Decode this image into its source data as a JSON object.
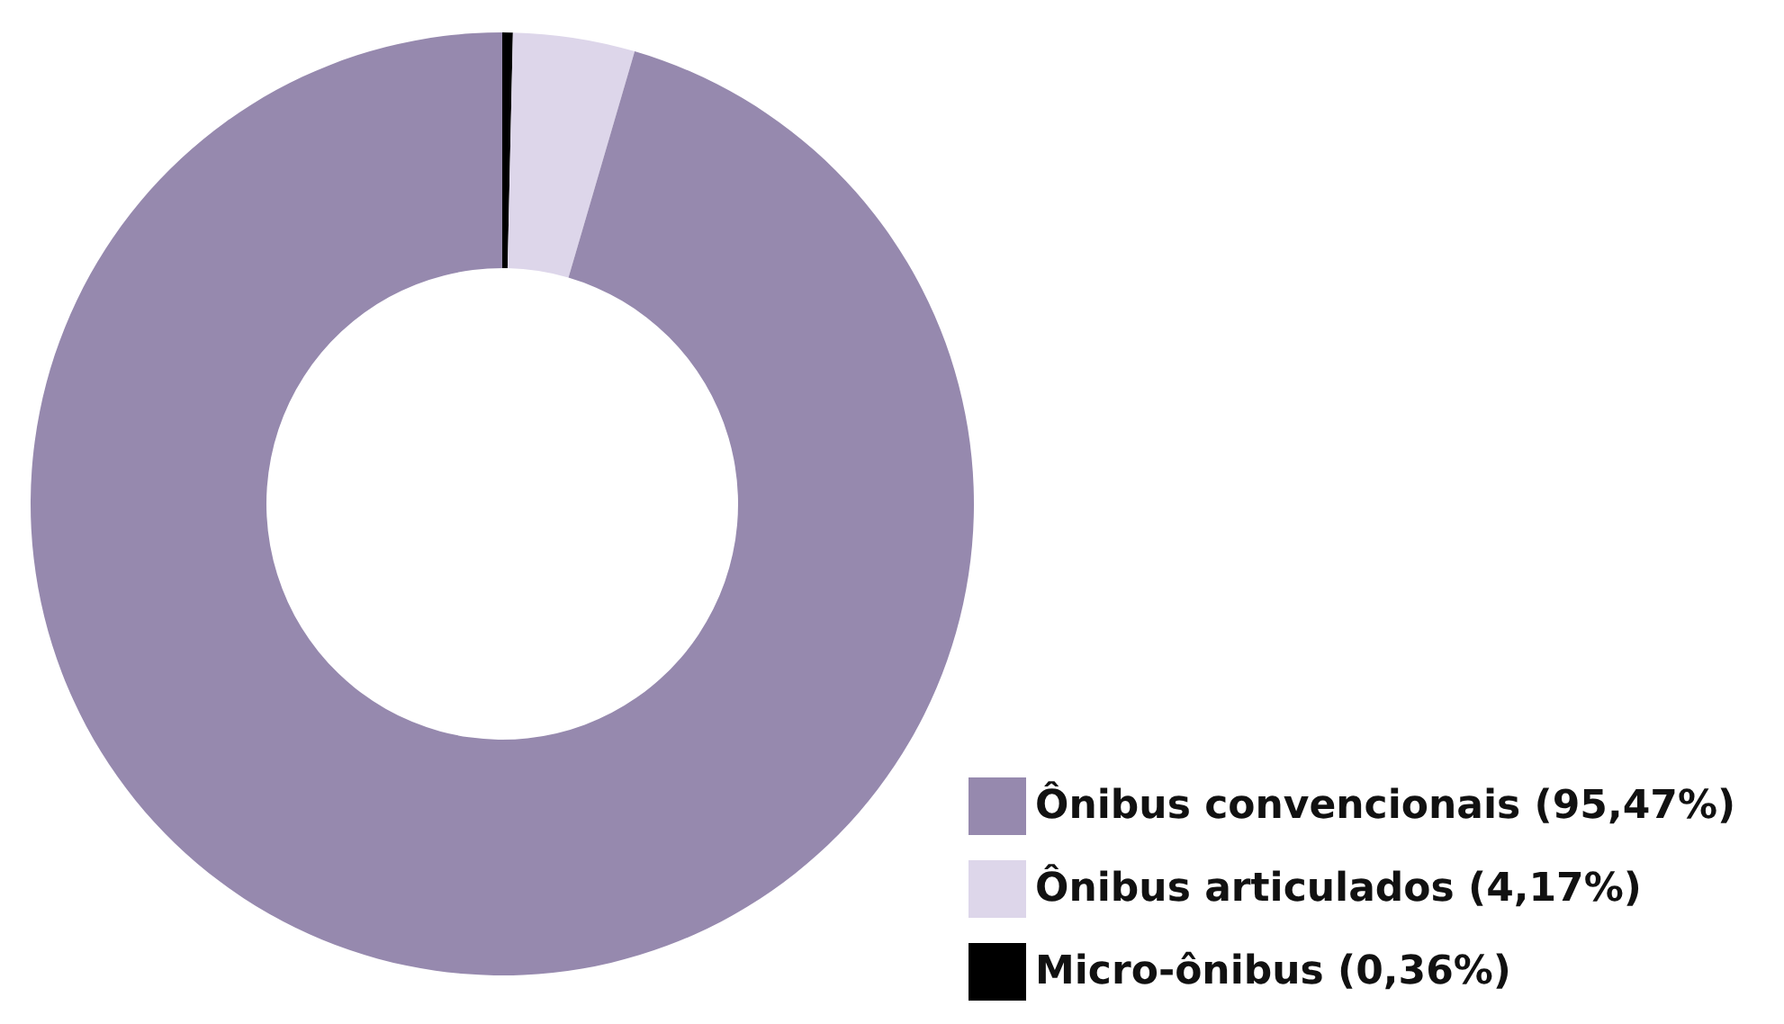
{
  "chart_data": {
    "type": "donut",
    "categories": [
      "Ônibus convencionais (95,47%)",
      "Ônibus articulados (4,17%)",
      "Micro-ônibus (0,36%)"
    ],
    "values": [
      95.47,
      4.17,
      0.36
    ],
    "colors": [
      "#9689ae",
      "#ddd6ea",
      "#000000"
    ],
    "legend": "bottom right"
  }
}
